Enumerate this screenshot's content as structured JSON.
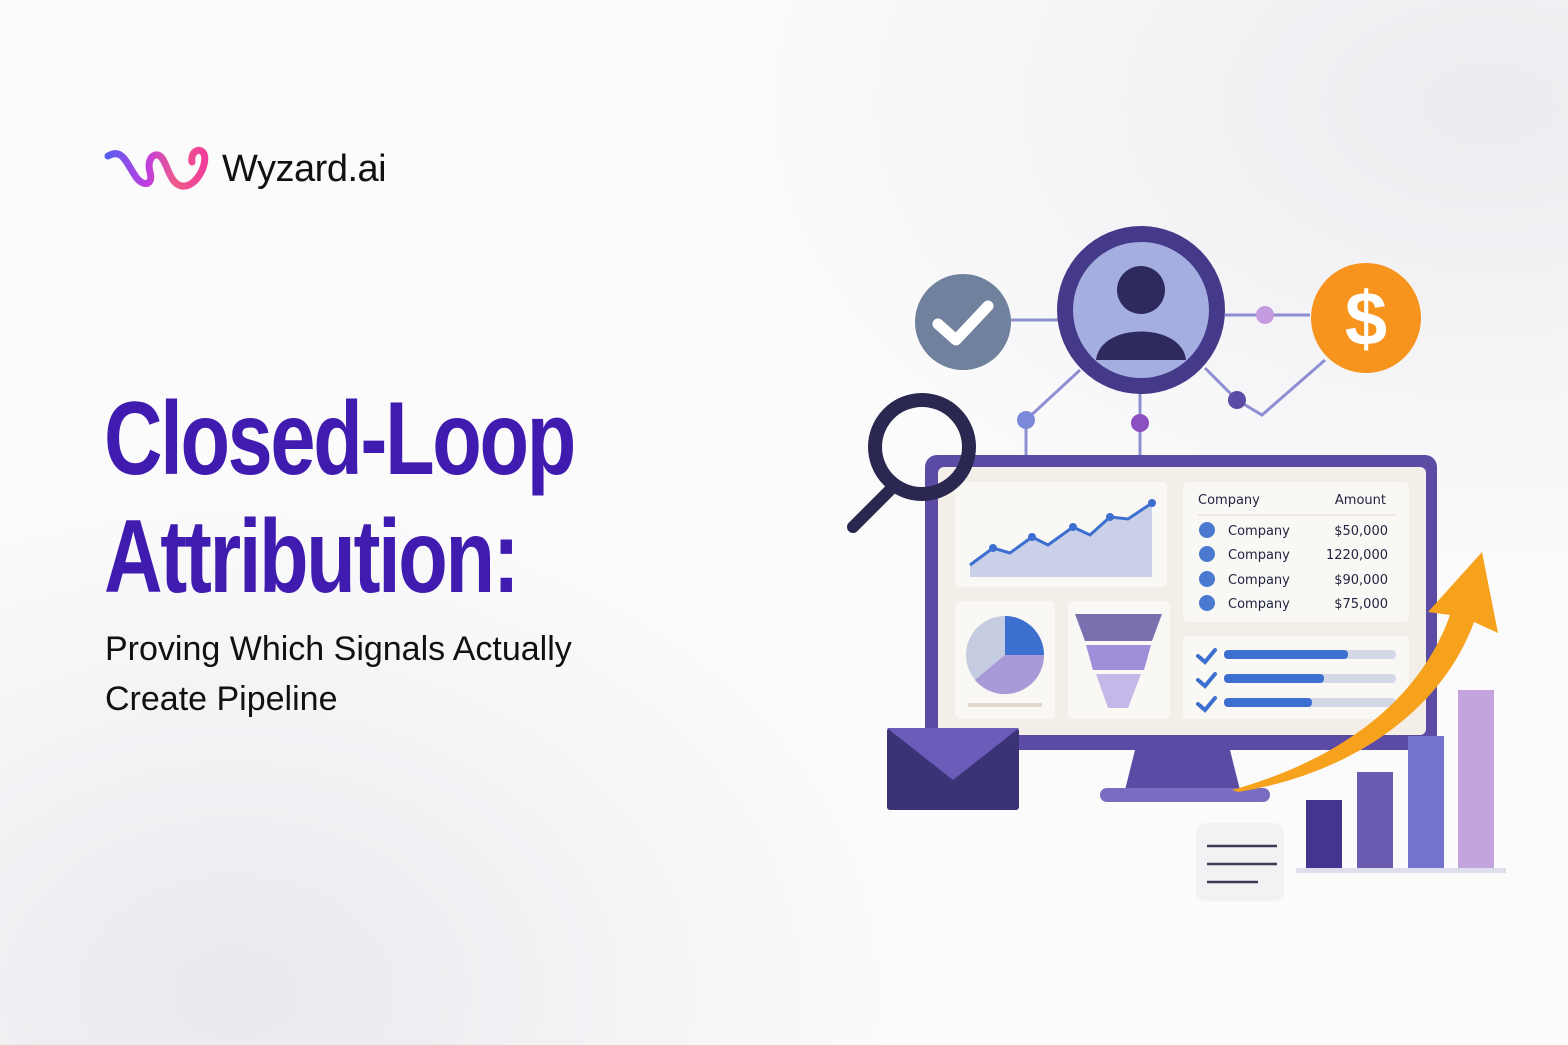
{
  "brand": {
    "name": "Wyzard.ai",
    "logo_colors": [
      "#5b5cf0",
      "#c03de0",
      "#f59a6a",
      "#ef3f9a"
    ]
  },
  "headline": {
    "line1": "Closed-Loop",
    "line2": "Attribution:"
  },
  "subtitle": {
    "line1": "Proving Which Signals Actually",
    "line2": "Create Pipeline"
  },
  "colors": {
    "title": "#3f1bb0",
    "accent_orange": "#f7941d",
    "monitor": "#5b4ba5"
  },
  "dashboard_table": {
    "headers": [
      "Company",
      "Amount"
    ],
    "rows": [
      {
        "name": "Company",
        "amount": "$50,000"
      },
      {
        "name": "Company",
        "amount": "1220,000"
      },
      {
        "name": "Company",
        "amount": "$90,000"
      },
      {
        "name": "Company",
        "amount": "$75,000"
      }
    ]
  },
  "icons": [
    "check-icon",
    "user-icon",
    "dollar-icon",
    "magnifier-icon",
    "envelope-icon",
    "trend-arrow-icon",
    "bar-chart-icon",
    "document-icon",
    "pie-chart-icon",
    "funnel-icon"
  ]
}
